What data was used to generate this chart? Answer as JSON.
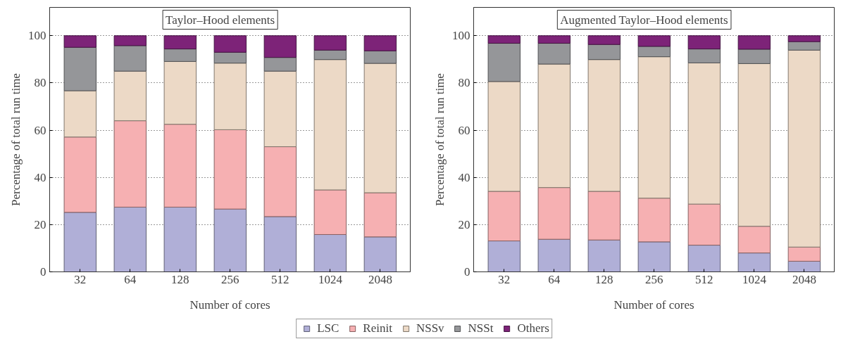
{
  "chart_data": [
    {
      "type": "bar",
      "stacked": true,
      "title": "Taylor–Hood elements",
      "xlabel": "Number of cores",
      "ylabel": "Percentage of total run time",
      "categories": [
        "32",
        "64",
        "128",
        "256",
        "512",
        "1024",
        "2048"
      ],
      "ylim": [
        0,
        112
      ],
      "yticks": [
        0,
        20,
        40,
        60,
        80,
        100
      ],
      "grid": "y",
      "legend": "bottom",
      "series": [
        {
          "name": "LSC",
          "color": "#b0afd7",
          "values": [
            25.2,
            27.4,
            27.4,
            26.6,
            23.4,
            15.8,
            14.8
          ]
        },
        {
          "name": "Reinit",
          "color": "#f6b0b2",
          "values": [
            31.9,
            36.6,
            35.1,
            33.6,
            29.6,
            18.9,
            18.7
          ]
        },
        {
          "name": "NSSv",
          "color": "#ecd9c6",
          "values": [
            19.6,
            21.0,
            26.6,
            28.2,
            32.0,
            55.2,
            54.8
          ]
        },
        {
          "name": "NSSt",
          "color": "#959699",
          "values": [
            18.4,
            10.8,
            5.3,
            4.6,
            5.8,
            4.0,
            5.3
          ]
        },
        {
          "name": "Others",
          "color": "#7d2378",
          "values": [
            4.9,
            4.2,
            5.6,
            7.0,
            9.2,
            6.1,
            6.4
          ]
        }
      ]
    },
    {
      "type": "bar",
      "stacked": true,
      "title": "Augmented Taylor–Hood elements",
      "xlabel": "Number of cores",
      "ylabel": "Percentage of total run time",
      "categories": [
        "32",
        "64",
        "128",
        "256",
        "512",
        "1024",
        "2048"
      ],
      "ylim": [
        0,
        112
      ],
      "yticks": [
        0,
        20,
        40,
        60,
        80,
        100
      ],
      "grid": "y",
      "series": [
        {
          "color": "#b0afd7",
          "values": [
            13.1,
            13.8,
            13.5,
            12.7,
            11.3,
            8.0,
            4.5
          ]
        },
        {
          "color": "#f6b0b2",
          "values": [
            21.0,
            21.9,
            20.6,
            18.5,
            17.4,
            11.3,
            6.0
          ]
        },
        {
          "color": "#ecd9c6",
          "values": [
            46.5,
            52.3,
            55.8,
            59.9,
            59.8,
            68.9,
            83.4
          ]
        },
        {
          "color": "#959699",
          "values": [
            16.2,
            8.8,
            6.4,
            4.4,
            5.9,
            6.1,
            3.6
          ]
        },
        {
          "color": "#7d2378",
          "values": [
            3.2,
            3.2,
            3.7,
            4.5,
            5.6,
            5.7,
            2.5
          ]
        }
      ]
    }
  ]
}
